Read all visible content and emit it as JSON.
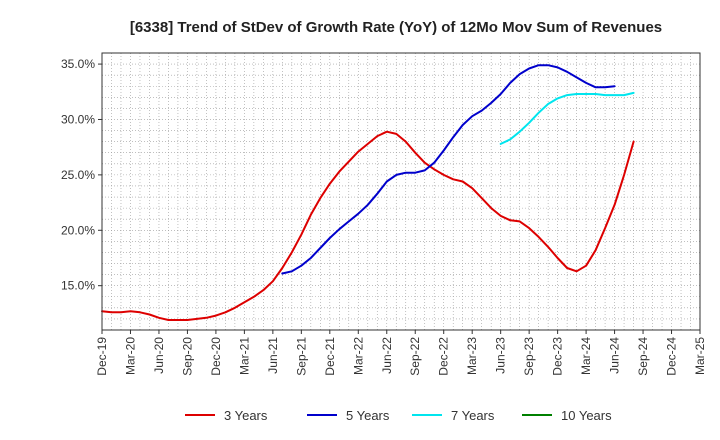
{
  "chart_data": {
    "type": "line",
    "title": "[6338]  Trend of StDev of Growth Rate (YoY) of 12Mo Mov Sum of Revenues",
    "xlabel": "",
    "ylabel": "",
    "ylim": [
      11.0,
      36.0
    ],
    "yticks": [
      15.0,
      20.0,
      25.0,
      30.0,
      35.0
    ],
    "ytick_labels": [
      "15.0%",
      "20.0%",
      "25.0%",
      "30.0%",
      "35.0%"
    ],
    "xtick_labels": [
      "Dec-19",
      "Mar-20",
      "Jun-20",
      "Sep-20",
      "Dec-20",
      "Mar-21",
      "Jun-21",
      "Sep-21",
      "Dec-21",
      "Mar-22",
      "Jun-22",
      "Sep-22",
      "Dec-22",
      "Mar-23",
      "Jun-23",
      "Sep-23",
      "Dec-23",
      "Mar-24",
      "Jun-24",
      "Sep-24",
      "Dec-24",
      "Mar-25"
    ],
    "grid": true,
    "legend_position": "bottom",
    "series": [
      {
        "name": "3 Years",
        "color": "#dd0000",
        "start_index": 0,
        "values": [
          12.7,
          12.6,
          12.6,
          12.7,
          12.6,
          12.4,
          12.1,
          11.9,
          11.9,
          11.9,
          12.0,
          12.1,
          12.3,
          12.6,
          13.0,
          13.5,
          14.0,
          14.6,
          15.4,
          16.6,
          18.0,
          19.6,
          21.4,
          22.9,
          24.2,
          25.3,
          26.2,
          27.1,
          27.8,
          28.5,
          28.9,
          28.7,
          28.0,
          27.0,
          26.1,
          25.5,
          25.0,
          24.6,
          24.4,
          23.8,
          22.9,
          22.0,
          21.3,
          20.9,
          20.8,
          20.2,
          19.4,
          18.5,
          17.5,
          16.6,
          16.3,
          16.8,
          18.2,
          20.2,
          22.3,
          25.0,
          28.0
        ]
      },
      {
        "name": "5 Years",
        "color": "#0000cc",
        "start_index": 19,
        "values": [
          16.1,
          16.3,
          16.8,
          17.5,
          18.4,
          19.3,
          20.1,
          20.8,
          21.5,
          22.3,
          23.3,
          24.4,
          25.0,
          25.2,
          25.2,
          25.4,
          26.1,
          27.2,
          28.4,
          29.5,
          30.3,
          30.8,
          31.5,
          32.3,
          33.3,
          34.1,
          34.6,
          34.9,
          34.9,
          34.7,
          34.3,
          33.8,
          33.3,
          32.9,
          32.9,
          33.0
        ]
      },
      {
        "name": "7 Years",
        "color": "#00e5ee",
        "start_index": 42,
        "values": [
          27.8,
          28.2,
          28.9,
          29.7,
          30.6,
          31.4,
          31.9,
          32.2,
          32.3,
          32.3,
          32.3,
          32.2,
          32.2,
          32.2,
          32.4
        ]
      },
      {
        "name": "10 Years",
        "color": "#008000",
        "start_index": 0,
        "values": []
      }
    ]
  }
}
